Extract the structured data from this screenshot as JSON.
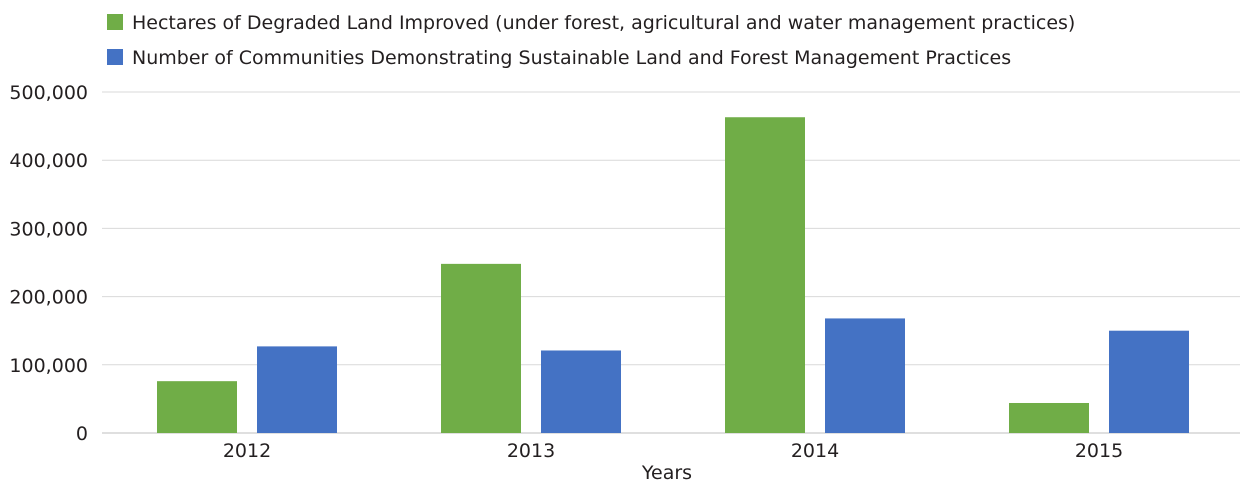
{
  "chart_data": {
    "type": "bar",
    "categories": [
      "2012",
      "2013",
      "2014",
      "2015"
    ],
    "series": [
      {
        "name": "Hectares of Degraded Land Improved (under forest, agricultural and water management practices)",
        "color": "#70ad47",
        "values": [
          76000,
          248000,
          463000,
          44000
        ]
      },
      {
        "name": "Number of Communities Demonstrating Sustainable Land and Forest Management Practices",
        "color": "#4472c4",
        "values": [
          127000,
          121000,
          168000,
          150000
        ]
      }
    ],
    "title": "",
    "xlabel": "Years",
    "ylabel": "",
    "ylim": [
      0,
      500000
    ],
    "yticks": [
      "0",
      "100,000",
      "200,000",
      "300,000",
      "400,000",
      "500,000"
    ],
    "grid": true,
    "legend_position": "top-left"
  }
}
